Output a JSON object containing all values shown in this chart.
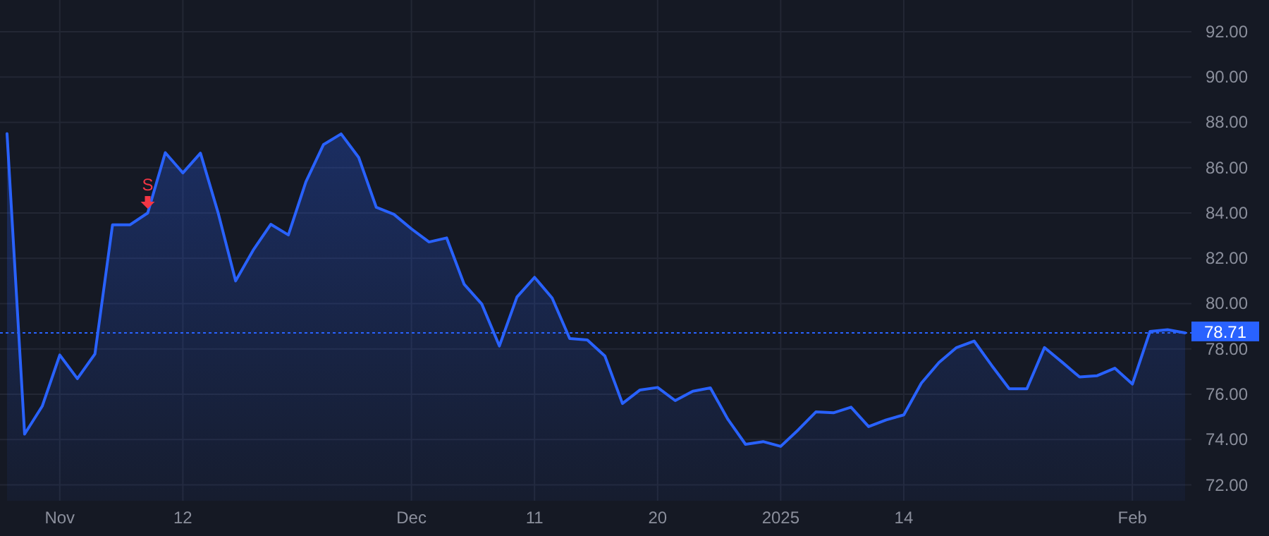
{
  "chart_data": {
    "type": "area",
    "categories": [
      null,
      null,
      null,
      "Nov",
      null,
      null,
      null,
      null,
      null,
      null,
      "12",
      null,
      null,
      null,
      null,
      null,
      null,
      null,
      null,
      null,
      null,
      null,
      null,
      "Dec",
      null,
      null,
      null,
      null,
      null,
      null,
      "11",
      null,
      null,
      null,
      null,
      null,
      null,
      "20",
      null,
      null,
      null,
      null,
      null,
      null,
      "2025",
      null,
      null,
      null,
      null,
      null,
      null,
      "14",
      null,
      null,
      null,
      null,
      null,
      null,
      null,
      null,
      null,
      null,
      null,
      null,
      "Feb",
      null,
      null,
      null
    ],
    "series": [
      {
        "color": "#2962ff",
        "values": [
          87.5,
          74.24,
          75.47,
          77.73,
          76.69,
          77.78,
          83.48,
          83.48,
          84.0,
          86.66,
          85.77,
          86.64,
          84.02,
          81.0,
          82.36,
          83.5,
          83.03,
          85.38,
          87.02,
          87.49,
          86.45,
          84.25,
          83.94,
          83.3,
          82.72,
          82.9,
          80.85,
          79.98,
          78.13,
          80.29,
          81.16,
          80.25,
          78.46,
          78.4,
          77.69,
          75.59,
          76.19,
          76.3,
          75.72,
          76.13,
          76.28,
          74.89,
          73.79,
          73.91,
          73.7,
          74.43,
          75.22,
          75.18,
          75.43,
          74.57,
          74.87,
          75.09,
          76.49,
          77.4,
          78.06,
          78.35,
          77.27,
          76.24,
          76.24,
          78.06,
          77.42,
          76.76,
          76.82,
          77.15,
          76.45,
          78.77,
          78.85,
          78.71
        ]
      }
    ],
    "ylim": [
      71.3,
      93.4
    ],
    "yticks": [
      {
        "value": 72,
        "label": "72.00"
      },
      {
        "value": 74,
        "label": "74.00"
      },
      {
        "value": 76,
        "label": "76.00"
      },
      {
        "value": 78,
        "label": "78.00"
      },
      {
        "value": 80,
        "label": "80.00"
      },
      {
        "value": 82,
        "label": "82.00"
      },
      {
        "value": 84,
        "label": "84.00"
      },
      {
        "value": 86,
        "label": "86.00"
      },
      {
        "value": 88,
        "label": "88.00"
      },
      {
        "value": 90,
        "label": "90.00"
      },
      {
        "value": 92,
        "label": "92.00"
      }
    ],
    "grid": true,
    "line_style": "solid",
    "ref_lines": [
      {
        "axis": "y",
        "value": 78.71,
        "label": "78.71",
        "color": "#2962ff",
        "line_style": "dotted"
      }
    ],
    "annotations": [
      {
        "text": "S",
        "y": 84.0
      }
    ]
  }
}
